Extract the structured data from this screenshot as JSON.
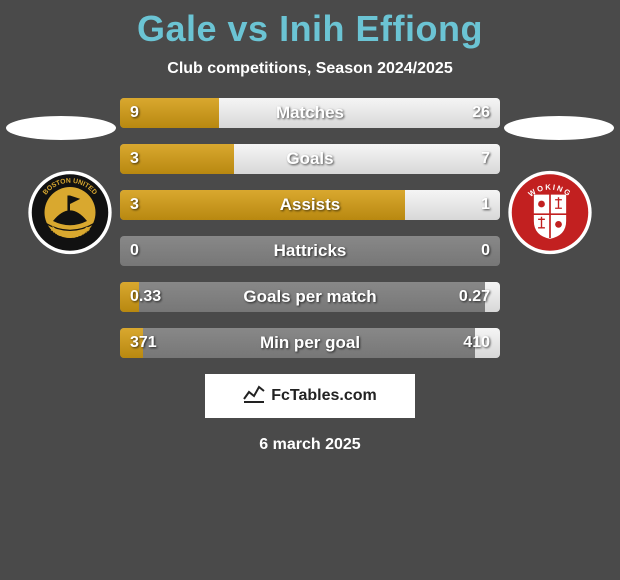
{
  "title": "Gale vs Inih Effiong",
  "subtitle": "Club competitions, Season 2024/2025",
  "leftCrest": {
    "ring_outer": "#ffffff",
    "ring_mid": "#111111",
    "ring_inner_fill": "#d9a82f",
    "text_top": "BOSTON UNITED",
    "text_bottom": "THE PILGRIMS",
    "text_color": "#d9a82f"
  },
  "rightCrest": {
    "ring_outer": "#ffffff",
    "ring_mid": "#c22020",
    "shield_bg": "#ffffff",
    "shield_cross": "#c22020",
    "text_top": "WOKING",
    "text_color": "#ffffff"
  },
  "bars": [
    {
      "label": "Matches",
      "left": "9",
      "right": "26",
      "lfrac": 0.26,
      "rfrac": 0.74
    },
    {
      "label": "Goals",
      "left": "3",
      "right": "7",
      "lfrac": 0.3,
      "rfrac": 0.7
    },
    {
      "label": "Assists",
      "left": "3",
      "right": "1",
      "lfrac": 0.75,
      "rfrac": 0.25
    },
    {
      "label": "Hattricks",
      "left": "0",
      "right": "0",
      "lfrac": 0.0,
      "rfrac": 0.0
    },
    {
      "label": "Goals per match",
      "left": "0.33",
      "right": "0.27",
      "lfrac": 0.05,
      "rfrac": 0.04
    },
    {
      "label": "Min per goal",
      "left": "371",
      "right": "410",
      "lfrac": 0.06,
      "rfrac": 0.065
    }
  ],
  "colors": {
    "left_bar_top": "#d9a82f",
    "left_bar_bottom": "#b88810",
    "right_bar_top": "#f5f5f5",
    "right_bar_bottom": "#d8d8d8",
    "bar_bg_top": "#888888",
    "bar_bg_bottom": "#777777",
    "page_bg": "#4a4a4a",
    "title_color": "#6bc4d4",
    "text_color": "#ffffff"
  },
  "footer": {
    "site": "FcTables.com",
    "date": "6 march 2025"
  }
}
